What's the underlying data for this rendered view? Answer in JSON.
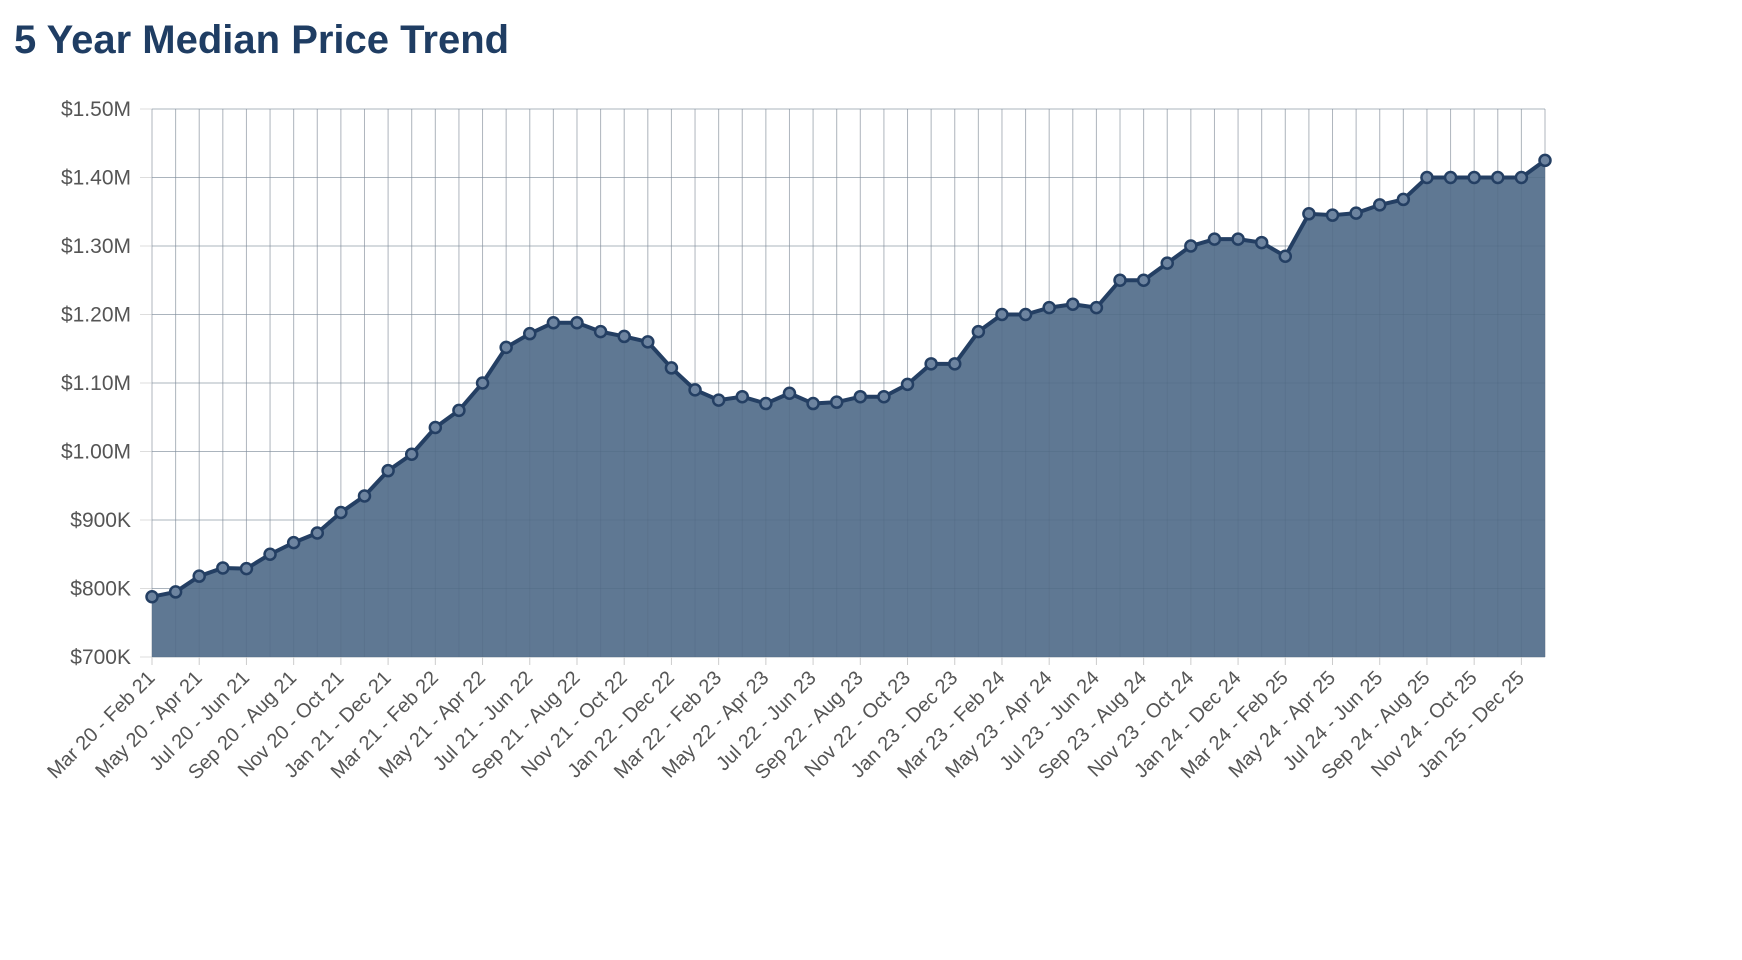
{
  "page": {
    "title": "5 Year Median Price Trend"
  },
  "colors": {
    "title": "#1f3d63",
    "line": "#243f63",
    "area": "#5f7893",
    "grid": "#dddddd",
    "tick_text": "#555555"
  },
  "chart_data": {
    "type": "area",
    "title": "5 Year Median Price Trend",
    "xlabel": "",
    "ylabel": "",
    "ylim": [
      700000,
      1500000
    ],
    "y_ticks": [
      700000,
      800000,
      900000,
      1000000,
      1100000,
      1200000,
      1300000,
      1400000,
      1500000
    ],
    "y_tick_labels": [
      "$700K",
      "$800K",
      "$900K",
      "$1.00M",
      "$1.10M",
      "$1.20M",
      "$1.30M",
      "$1.40M",
      "$1.50M"
    ],
    "x_tick_labels": [
      "Mar 20 - Feb 21",
      "May 20 - Apr 21",
      "Jul 20 - Jun 21",
      "Sep 20 - Aug 21",
      "Nov 20 - Oct 21",
      "Jan 21 - Dec 21",
      "Mar 21 - Feb 22",
      "May 21 - Apr 22",
      "Jul 21 - Jun 22",
      "Sep 21 - Aug 22",
      "Nov 21 - Oct 22",
      "Jan 22 - Dec 22",
      "Mar 22 - Feb 23",
      "May 22 - Apr 23",
      "Jul 22 - Jun 23",
      "Sep 22 - Aug 23",
      "Nov 22 - Oct 23",
      "Jan 23 - Dec 23",
      "Mar 23 - Feb 24",
      "May 23 - Apr 24",
      "Jul 23 - Jun 24",
      "Sep 23 - Aug 24",
      "Nov 23 - Oct 24",
      "Jan 24 - Dec 24",
      "Mar 24 - Feb 25",
      "May 24 - Apr 25",
      "Jul 24 - Jun 25",
      "Sep 24 - Aug 25",
      "Nov 24 - Oct 25",
      "Jan 25 - Dec 25"
    ],
    "tick_every": 2,
    "grid": true,
    "legend": "none",
    "series": [
      {
        "values": [
          788000,
          795000,
          818000,
          830000,
          829000,
          850000,
          867000,
          881000,
          911000,
          935000,
          972000,
          996000,
          1035000,
          1060000,
          1100000,
          1152000,
          1172000,
          1188000,
          1188000,
          1175000,
          1168000,
          1160000,
          1122000,
          1090000,
          1075000,
          1080000,
          1070000,
          1085000,
          1070000,
          1072000,
          1080000,
          1080000,
          1098000,
          1128000,
          1128000,
          1175000,
          1200000,
          1200000,
          1210000,
          1215000,
          1210000,
          1250000,
          1250000,
          1275000,
          1300000,
          1310000,
          1310000,
          1305000,
          1285000,
          1347000,
          1345000,
          1348000,
          1360000,
          1368000,
          1400000,
          1400000,
          1400000,
          1400000,
          1400000,
          1425000
        ]
      }
    ]
  }
}
